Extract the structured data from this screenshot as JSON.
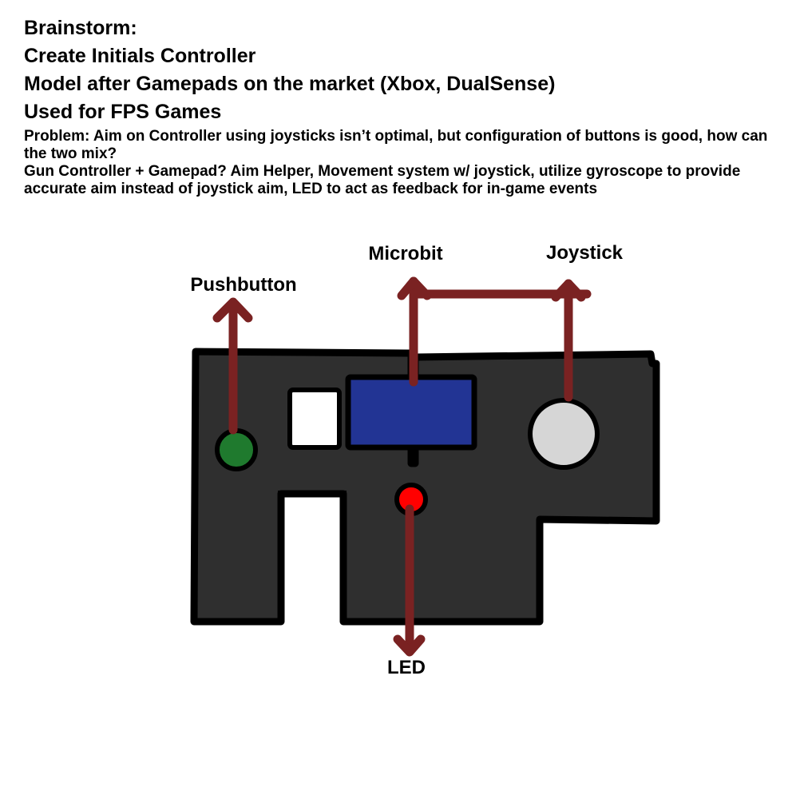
{
  "notes": {
    "heading_lines": [
      "Brainstorm:",
      "Create Initials Controller",
      "Model after Gamepads on the market (Xbox, DualSense)",
      "Used for FPS Games"
    ],
    "problem": "Problem: Aim on Controller using joysticks isn’t optimal, but configuration of buttons is good, how can the two mix?",
    "solution": "Gun Controller + Gamepad? Aim Helper, Movement system w/ joystick, utilize gyroscope to provide accurate aim instead of joystick aim, LED to act as feedback for in-game events"
  },
  "diagram": {
    "labels": {
      "pushbutton": "Pushbutton",
      "microbit": "Microbit",
      "joystick": "Joystick",
      "led": "LED"
    },
    "colors": {
      "board_fill": "#2f2f2f",
      "board_outline": "#000000",
      "arrow": "#7a2222",
      "pushbutton": "#1f7a2e",
      "microbit": "#223494",
      "joystick": "#d6d6d6",
      "led": "#ff0000",
      "square_button": "#ffffff"
    }
  }
}
